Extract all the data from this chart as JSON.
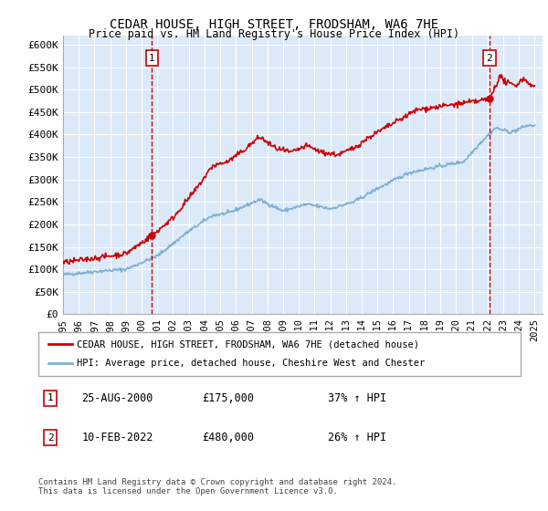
{
  "title": "CEDAR HOUSE, HIGH STREET, FRODSHAM, WA6 7HE",
  "subtitle": "Price paid vs. HM Land Registry's House Price Index (HPI)",
  "ylabel_ticks": [
    "£0",
    "£50K",
    "£100K",
    "£150K",
    "£200K",
    "£250K",
    "£300K",
    "£350K",
    "£400K",
    "£450K",
    "£500K",
    "£550K",
    "£600K"
  ],
  "ytick_values": [
    0,
    50000,
    100000,
    150000,
    200000,
    250000,
    300000,
    350000,
    400000,
    450000,
    500000,
    550000,
    600000
  ],
  "ylim": [
    0,
    620000
  ],
  "xlim_start": 1995.0,
  "xlim_end": 2025.5,
  "bg_color": "#dce9f8",
  "line_color_red": "#cc0000",
  "line_color_blue": "#7db0d4",
  "sale1_x": 2000.65,
  "sale1_y": 175000,
  "sale1_label": "1",
  "sale2_x": 2022.12,
  "sale2_y": 480000,
  "sale2_label": "2",
  "legend_red": "CEDAR HOUSE, HIGH STREET, FRODSHAM, WA6 7HE (detached house)",
  "legend_blue": "HPI: Average price, detached house, Cheshire West and Chester",
  "table_rows": [
    [
      "1",
      "25-AUG-2000",
      "£175,000",
      "37% ↑ HPI"
    ],
    [
      "2",
      "10-FEB-2022",
      "£480,000",
      "26% ↑ HPI"
    ]
  ],
  "footer": "Contains HM Land Registry data © Crown copyright and database right 2024.\nThis data is licensed under the Open Government Licence v3.0.",
  "xtick_years": [
    1995,
    1996,
    1997,
    1998,
    1999,
    2000,
    2001,
    2002,
    2003,
    2004,
    2005,
    2006,
    2007,
    2008,
    2009,
    2010,
    2011,
    2012,
    2013,
    2014,
    2015,
    2016,
    2017,
    2018,
    2019,
    2020,
    2021,
    2022,
    2023,
    2024,
    2025
  ]
}
